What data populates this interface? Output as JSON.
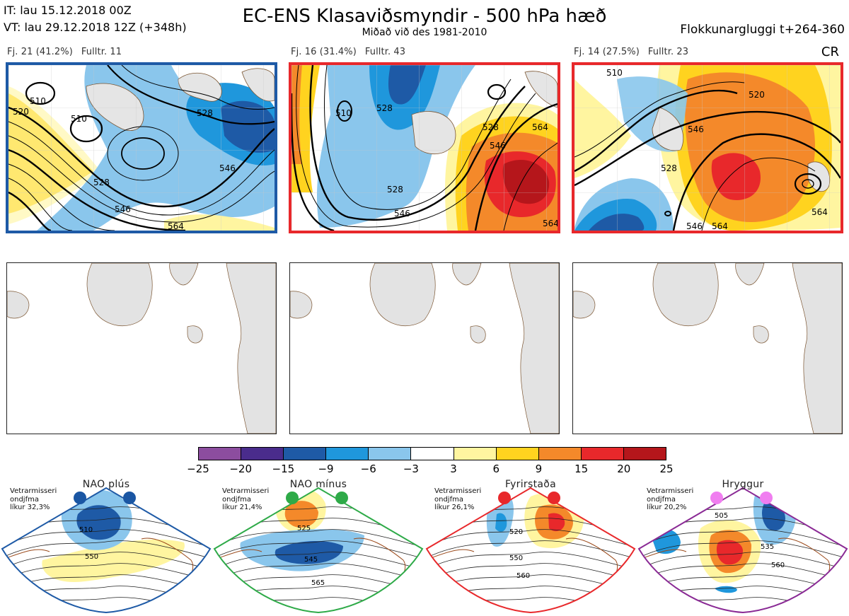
{
  "header": {
    "it_line": "IT: lau 15.12.2018 00Z",
    "vt_line": "VT: lau 29.12.2018 12Z  (+348h)",
    "title": "EC-ENS Klasaviðsmyndir - 500 hPa hæð",
    "subtitle": "Miðað við des 1981-2010",
    "window": "Flokkunargluggi t+264-360",
    "cr": "CR"
  },
  "clusters": [
    {
      "label_fj": "Fj. 21 (41.2%)",
      "label_rep": "Fulltr. 11",
      "frame_color": "#1e5aa6",
      "contour_labels": [
        "510",
        "510",
        "520",
        "528",
        "528",
        "546",
        "546",
        "564"
      ]
    },
    {
      "label_fj": "Fj. 16 (31.4%)",
      "label_rep": "Fulltr. 43",
      "frame_color": "#e8282b",
      "contour_labels": [
        "510",
        "528",
        "528",
        "528",
        "546",
        "546",
        "564",
        "564"
      ]
    },
    {
      "label_fj": "Fj. 14 (27.5%)",
      "label_rep": "Fulltr. 23",
      "frame_color": "#e8282b",
      "contour_labels": [
        "510",
        "520",
        "528",
        "546",
        "546",
        "564",
        "564"
      ]
    }
  ],
  "colorbar": {
    "ticks": [
      "−25",
      "−20",
      "−15",
      "−9",
      "−6",
      "−3",
      "3",
      "6",
      "9",
      "15",
      "20",
      "25"
    ],
    "colors": [
      "#8c4d9f",
      "#4a2c8c",
      "#1e5aa6",
      "#1f97dc",
      "#8ac6ec",
      "#ffffff",
      "#fff5a0",
      "#ffd31f",
      "#f4892a",
      "#e8282b",
      "#b5161b"
    ]
  },
  "regimes": [
    {
      "title": "NAO plús",
      "info": [
        "Vetrarmisseri",
        "ondjfma",
        "líkur 32,3%"
      ],
      "color": "#1e5aa6",
      "dot_color": "#1a56a3",
      "labels": [
        "510",
        "550"
      ]
    },
    {
      "title": "NAO mínus",
      "info": [
        "Vetrarmisseri",
        "ondjfma",
        "líkur 21,4%"
      ],
      "color": "#2eaa48",
      "dot_color": "#2eaa48",
      "labels": [
        "525",
        "545",
        "565"
      ]
    },
    {
      "title": "Fyrirstaða",
      "info": [
        "Vetrarmisseri",
        "ondjfma",
        "líkur 26,1%"
      ],
      "color": "#e8282b",
      "dot_color": "#e8282b",
      "labels": [
        "520",
        "550",
        "560"
      ]
    },
    {
      "title": "Hryggur",
      "info": [
        "Vetrarmisseri",
        "ondjfma",
        "líkur 20,2%"
      ],
      "color": "#8a2a95",
      "dot_color": "#f07ef0",
      "labels": [
        "505",
        "535",
        "560"
      ]
    }
  ]
}
